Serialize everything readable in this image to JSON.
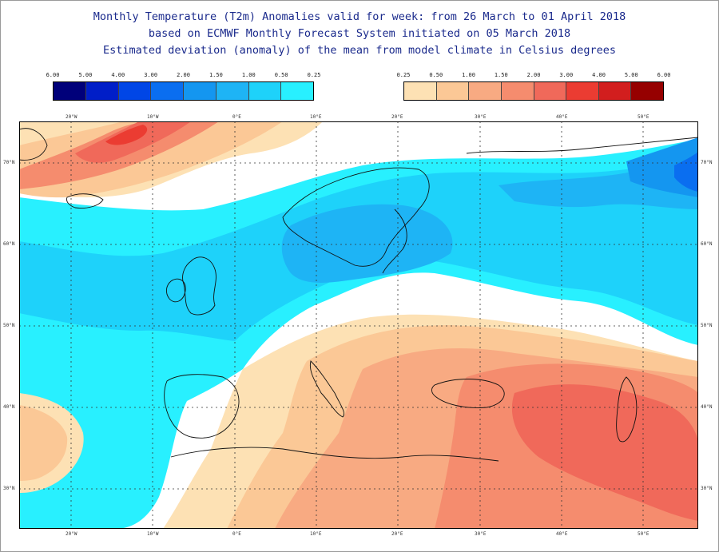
{
  "title": {
    "line1": "Monthly Temperature (T2m) Anomalies valid for week: from 26 March to 01 April 2018",
    "line2": "based on ECMWF Monthly Forecast System initiated on 05 March 2018",
    "line3": "Estimated deviation (anomaly) of the mean from model climate in Celsius degrees"
  },
  "legend_cold": {
    "ticks": [
      "6.00",
      "5.00",
      "4.00",
      "3.00",
      "2.00",
      "1.50",
      "1.00",
      "0.50",
      "0.25"
    ],
    "colors": [
      "#00007a",
      "#001ec8",
      "#0046e6",
      "#0a6ef0",
      "#1496f0",
      "#1eb4f5",
      "#1ed2fa",
      "#28f0ff"
    ]
  },
  "legend_warm": {
    "ticks": [
      "0.25",
      "0.50",
      "1.00",
      "1.50",
      "2.00",
      "3.00",
      "4.00",
      "5.00",
      "6.00"
    ],
    "colors": [
      "#fde1b4",
      "#fbc896",
      "#f8aa82",
      "#f58c6e",
      "#f0695a",
      "#eb3c32",
      "#d21e1e",
      "#960000"
    ]
  },
  "map": {
    "lon_labels_top": [
      "20°W",
      "10°W",
      "0°E",
      "10°E",
      "20°E",
      "30°E",
      "40°E",
      "50°E"
    ],
    "lon_labels_bottom": [
      "20°W",
      "10°W",
      "0°E",
      "10°E",
      "20°E",
      "30°E",
      "40°E",
      "50°E"
    ],
    "lat_labels_left": [
      "70°N",
      "60°N",
      "50°N",
      "40°N",
      "30°N"
    ],
    "lat_labels_right": [
      "70°N",
      "60°N",
      "50°N",
      "40°N",
      "30°N"
    ],
    "colors": {
      "neutral": "#ffffff",
      "cold_025": "#28f0ff",
      "cold_05": "#1ed2fa",
      "cold_1": "#1eb4f5",
      "cold_15": "#1496f0",
      "cold_2": "#0a6ef0",
      "warm_025": "#fde1b4",
      "warm_05": "#fbc896",
      "warm_1": "#f8aa82",
      "warm_15": "#f58c6e",
      "warm_2": "#f0695a",
      "warm_3": "#eb3c32",
      "coast": "#111111",
      "grid": "#333333"
    }
  }
}
